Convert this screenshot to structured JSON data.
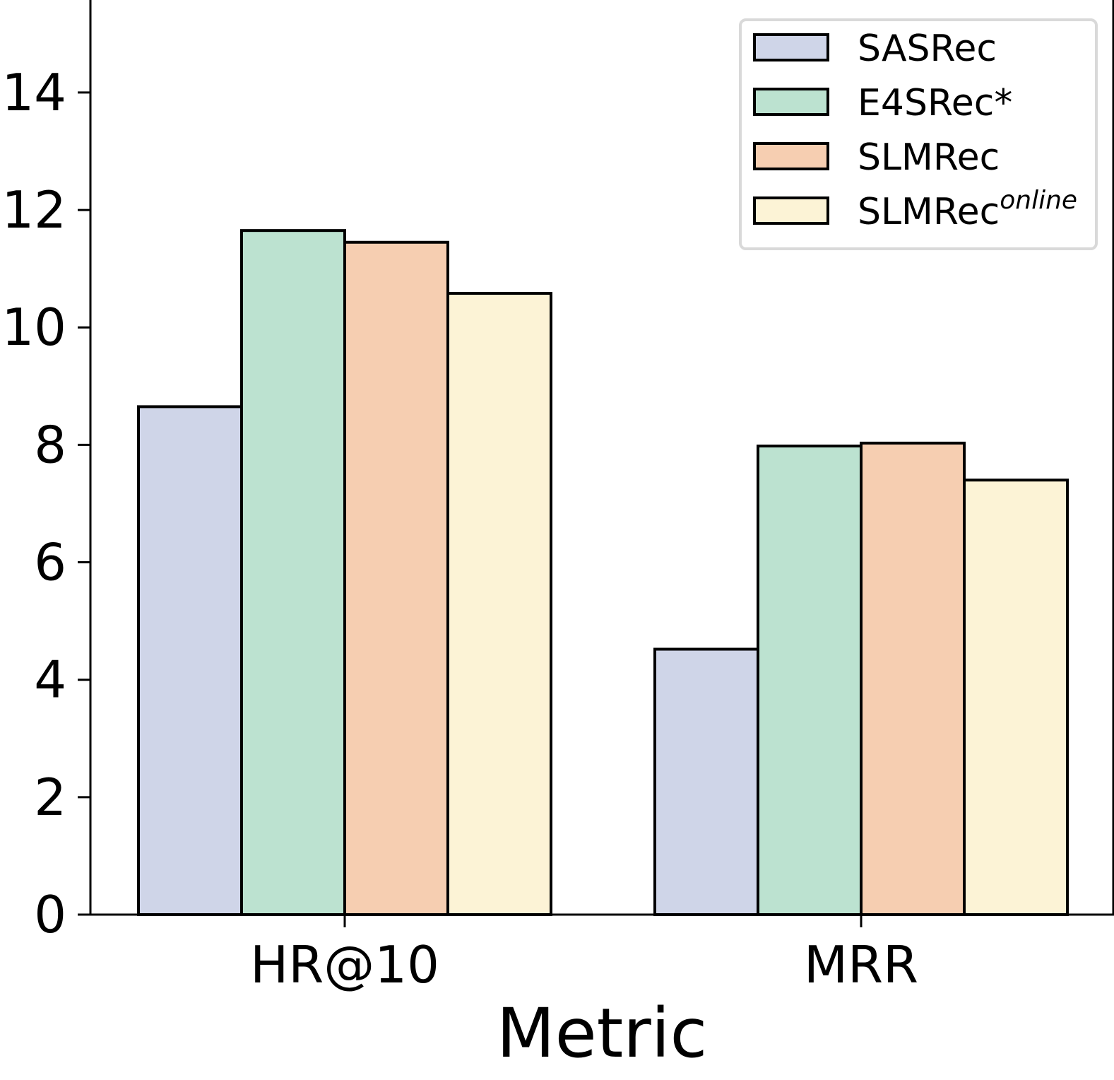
{
  "chart_data": {
    "type": "bar",
    "title": "",
    "xlabel": "Metric",
    "ylabel": "",
    "categories": [
      "HR@10",
      "MRR"
    ],
    "ylim": [
      0,
      15.6
    ],
    "yticks": [
      0,
      2,
      4,
      6,
      8,
      10,
      12,
      14
    ],
    "grid": false,
    "legend_position": "top-right",
    "series": [
      {
        "name": "SASRec",
        "name_sup": "",
        "color": "#cfd5e8",
        "values": [
          8.65,
          4.52
        ]
      },
      {
        "name": "E4SRec*",
        "name_sup": "",
        "color": "#bce2d0",
        "values": [
          11.65,
          7.98
        ]
      },
      {
        "name": "SLMRec",
        "name_sup": "",
        "color": "#f6ceb1",
        "values": [
          11.45,
          8.03
        ]
      },
      {
        "name": "SLMRec",
        "name_sup": "online",
        "color": "#fcf3d6",
        "values": [
          10.58,
          7.4
        ]
      }
    ]
  }
}
